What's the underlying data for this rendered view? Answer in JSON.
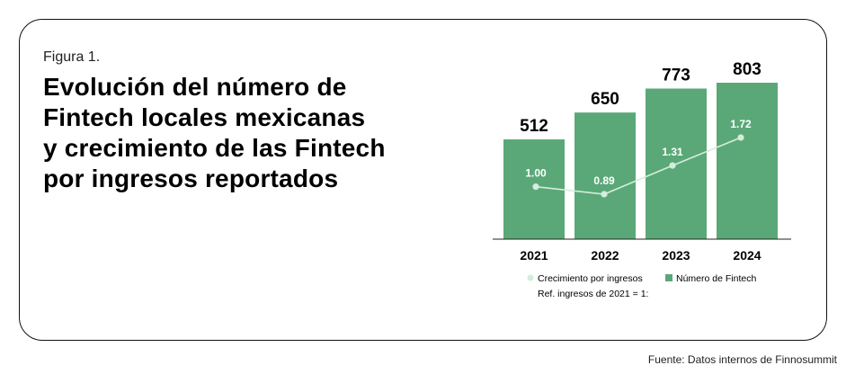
{
  "figure_label": "Figura 1.",
  "title_lines": [
    "Evolución del número de",
    "Fintech locales mexicanas",
    "y crecimiento de las Fintech",
    "por ingresos reportados"
  ],
  "source": "Fuente: Datos internos de Finnosummit",
  "colors": {
    "bar": "#5aa878",
    "line": "#d4eddb",
    "point": "#d4eddb",
    "point_label": "#ffffff",
    "axis": "#222222"
  },
  "chart_data": {
    "type": "bar",
    "categories": [
      "2021",
      "2022",
      "2023",
      "2024"
    ],
    "series": [
      {
        "name": "Número de Fintech",
        "type": "bar",
        "values": [
          512,
          650,
          773,
          803
        ]
      },
      {
        "name": "Crecimiento por ingresos",
        "type": "line",
        "values": [
          1.0,
          0.89,
          1.31,
          1.72
        ],
        "labels": [
          "1.00",
          "0.89",
          "1.31",
          "1.72"
        ]
      }
    ],
    "bar_labels": [
      "512",
      "650",
      "773",
      "803"
    ],
    "legend": {
      "items": [
        "Crecimiento por ingresos",
        "Número de Fintech"
      ],
      "note": "Ref. ingresos de 2021 = 1:",
      "placement": "bottom"
    },
    "grid": false
  }
}
